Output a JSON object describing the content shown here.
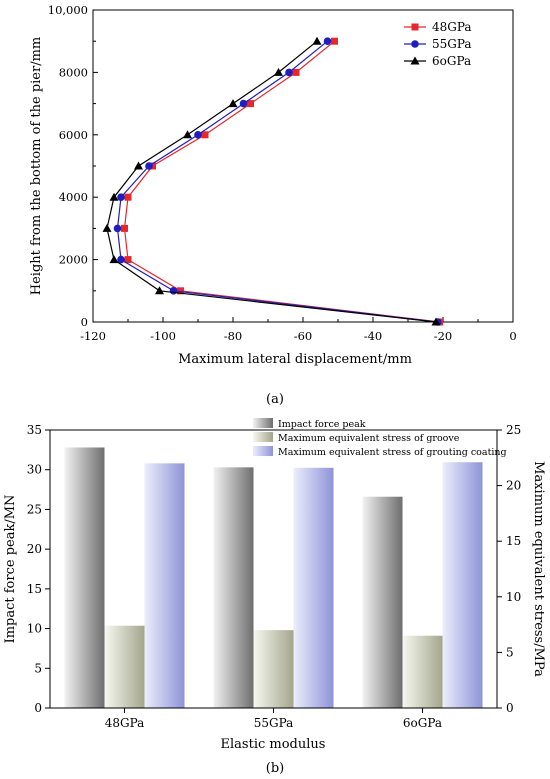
{
  "chart_data": [
    {
      "type": "line",
      "panel_label": "(a)",
      "xlabel": "Maximum lateral displacement/mm",
      "ylabel": "Height from the bottom of the pier/mm",
      "xlim": [
        -120,
        0
      ],
      "ylim": [
        0,
        10000
      ],
      "x_ticks": [
        "-120",
        "-100",
        "-80",
        "-60",
        "-40",
        "-20",
        "0"
      ],
      "y_ticks": [
        "0",
        "2000",
        "4000",
        "6000",
        "8000",
        "10,000"
      ],
      "legend_position": "top-right",
      "series": [
        {
          "name": "48GPa",
          "color": "#e8262c",
          "marker": "square",
          "points": [
            [
              -21,
              0
            ],
            [
              -95,
              1000
            ],
            [
              -110,
              2000
            ],
            [
              -111,
              3000
            ],
            [
              -110,
              4000
            ],
            [
              -103,
              5000
            ],
            [
              -88,
              6000
            ],
            [
              -75,
              7000
            ],
            [
              -62,
              8000
            ],
            [
              -51,
              9000
            ]
          ]
        },
        {
          "name": "55GPa",
          "color": "#1f1fbf",
          "marker": "circle",
          "points": [
            [
              -21.5,
              0
            ],
            [
              -97,
              1000
            ],
            [
              -112,
              2000
            ],
            [
              -113,
              3000
            ],
            [
              -112,
              4000
            ],
            [
              -104,
              5000
            ],
            [
              -90,
              6000
            ],
            [
              -77,
              7000
            ],
            [
              -64,
              8000
            ],
            [
              -53,
              9000
            ]
          ]
        },
        {
          "name": "6oGPa",
          "color": "#000000",
          "marker": "triangle",
          "points": [
            [
              -22,
              0
            ],
            [
              -101,
              1000
            ],
            [
              -114,
              2000
            ],
            [
              -116,
              3000
            ],
            [
              -114,
              4000
            ],
            [
              -107,
              5000
            ],
            [
              -93,
              6000
            ],
            [
              -80,
              7000
            ],
            [
              -67,
              8000
            ],
            [
              -56,
              9000
            ]
          ]
        }
      ]
    },
    {
      "type": "bar",
      "panel_label": "(b)",
      "categories": [
        "48GPa",
        "55GPa",
        "6oGPa"
      ],
      "xlabel": "Elastic modulus",
      "ylabel_left": "Impact force peak/MN",
      "ylabel_right": "Maximum equivalent stress/MPa",
      "ylim_left": [
        0,
        35
      ],
      "ylim_right": [
        0,
        25
      ],
      "y_ticks_left": [
        "0",
        "5",
        "10",
        "15",
        "20",
        "25",
        "30",
        "35"
      ],
      "y_ticks_right": [
        "0",
        "5",
        "10",
        "15",
        "20",
        "25"
      ],
      "legend_position": "top-right",
      "series": [
        {
          "name": "Impact force peak",
          "axis": "left",
          "color": "#7f7f7f",
          "values": [
            32.8,
            30.3,
            26.6
          ]
        },
        {
          "name": "Maximum equivalent stress of groove",
          "axis": "right",
          "color": "#a7aa94",
          "values": [
            7.4,
            7.0,
            6.5
          ]
        },
        {
          "name": "Maximum equivalent stress of grouting coating",
          "axis": "right",
          "color": "#9a9fdc",
          "values": [
            22.0,
            21.6,
            22.1
          ]
        }
      ]
    }
  ]
}
